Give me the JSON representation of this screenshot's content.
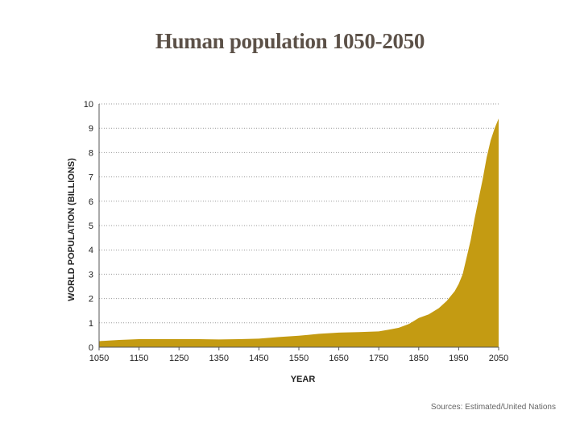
{
  "chart_data": {
    "type": "area",
    "title": "Human population 1050-2050",
    "xlabel": "YEAR",
    "ylabel": "WORLD POPULATION (BILLIONS)",
    "xlim": [
      1050,
      2050
    ],
    "ylim": [
      0,
      10
    ],
    "x_ticks": [
      1050,
      1150,
      1250,
      1350,
      1450,
      1550,
      1650,
      1750,
      1850,
      1950,
      2050
    ],
    "y_ticks": [
      0,
      1,
      2,
      3,
      4,
      5,
      6,
      7,
      8,
      9,
      10
    ],
    "grid": "horizontal-dotted",
    "fill_color": "#c49b12",
    "series": [
      {
        "x": [
          1050,
          1100,
          1150,
          1200,
          1250,
          1300,
          1350,
          1400,
          1450,
          1500,
          1550,
          1600,
          1650,
          1700,
          1750,
          1775,
          1800,
          1825,
          1850,
          1875,
          1900,
          1920,
          1940,
          1950,
          1960,
          1970,
          1980,
          1990,
          2000,
          2010,
          2020,
          2030,
          2040,
          2050
        ],
        "y": [
          0.25,
          0.3,
          0.33,
          0.33,
          0.33,
          0.33,
          0.32,
          0.33,
          0.35,
          0.42,
          0.47,
          0.55,
          0.6,
          0.62,
          0.65,
          0.72,
          0.8,
          0.95,
          1.2,
          1.35,
          1.6,
          1.9,
          2.3,
          2.6,
          3.0,
          3.7,
          4.4,
          5.3,
          6.1,
          6.9,
          7.8,
          8.5,
          9.0,
          9.4
        ]
      }
    ]
  },
  "source_note": "Sources: Estimated/United Nations"
}
